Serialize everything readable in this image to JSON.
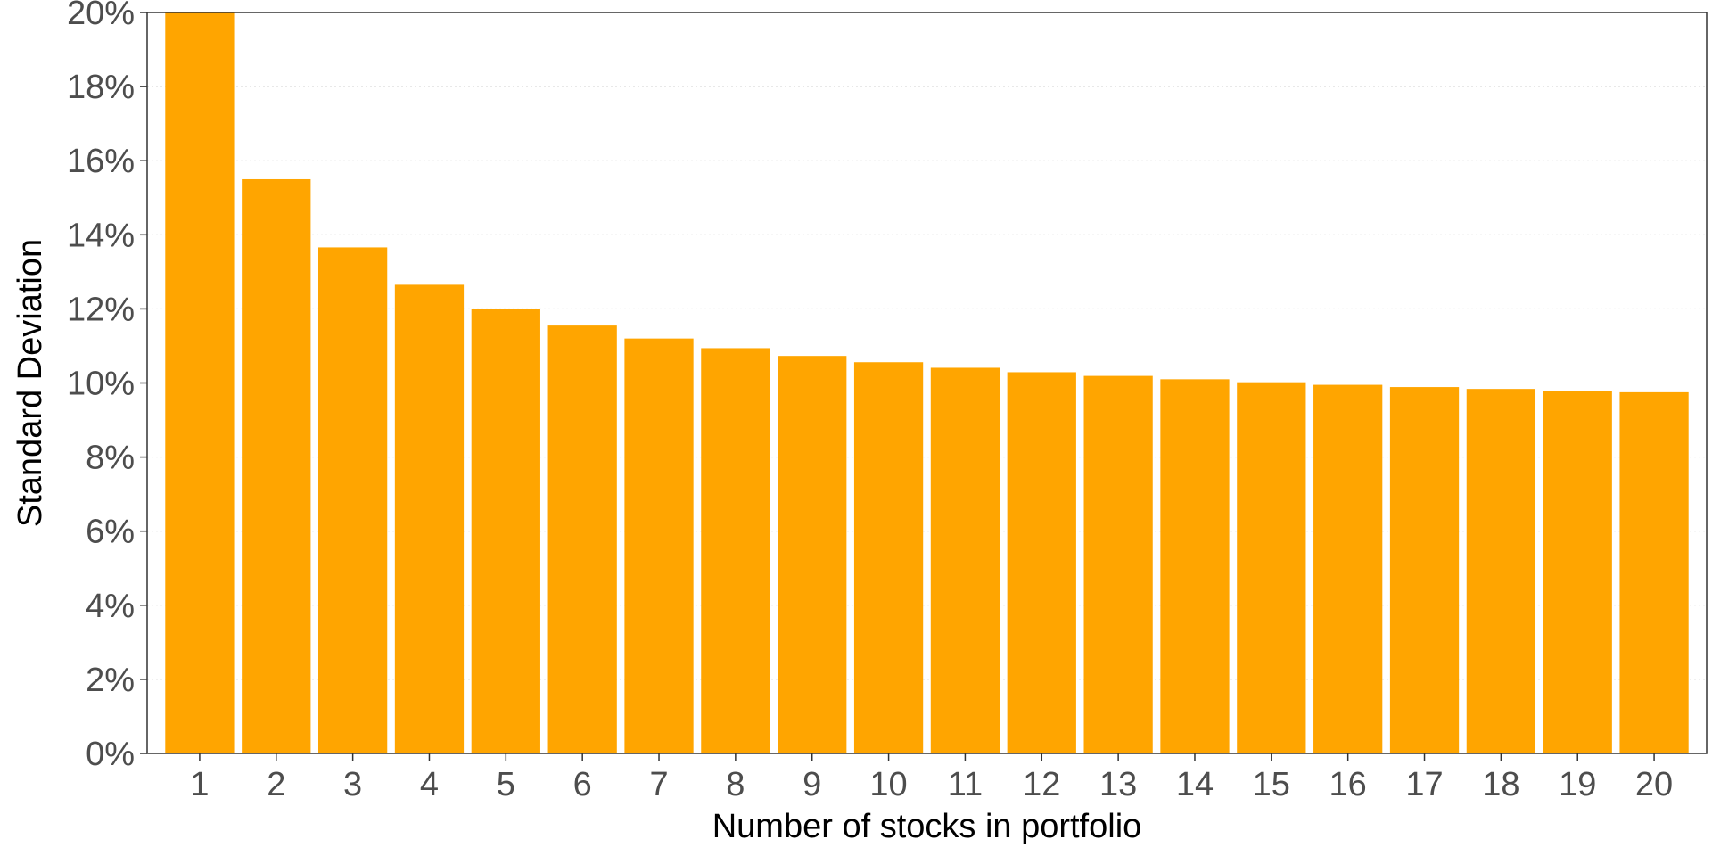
{
  "chart_data": {
    "type": "bar",
    "title": "",
    "xlabel": "Number of stocks in portfolio",
    "ylabel": "Standard Deviation",
    "categories": [
      "1",
      "2",
      "3",
      "4",
      "5",
      "6",
      "7",
      "8",
      "9",
      "10",
      "11",
      "12",
      "13",
      "14",
      "15",
      "16",
      "17",
      "18",
      "19",
      "20"
    ],
    "values": [
      20.0,
      15.5,
      13.66,
      12.65,
      12.0,
      11.55,
      11.2,
      10.94,
      10.73,
      10.56,
      10.41,
      10.29,
      10.19,
      10.1,
      10.02,
      9.95,
      9.89,
      9.84,
      9.79,
      9.75
    ],
    "ylim": [
      0,
      20
    ],
    "yticks": [
      0,
      2,
      4,
      6,
      8,
      10,
      12,
      14,
      16,
      18,
      20
    ],
    "ytick_labels": [
      "0%",
      "2%",
      "4%",
      "6%",
      "8%",
      "10%",
      "12%",
      "14%",
      "16%",
      "18%",
      "20%"
    ],
    "grid": true,
    "bar_color": "#FFA500"
  }
}
